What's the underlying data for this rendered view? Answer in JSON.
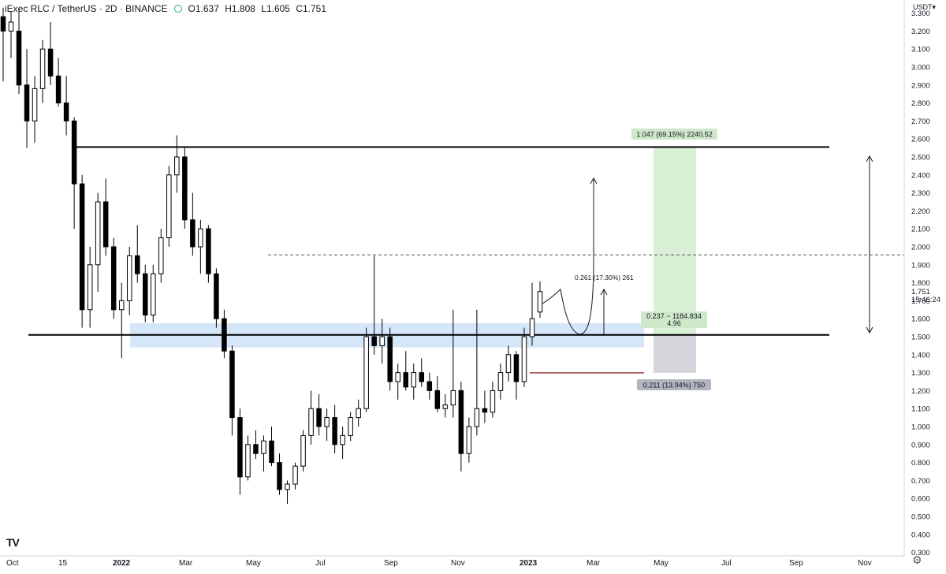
{
  "header": {
    "symbol": "iExec RLC / TetherUS · 2D · BINANCE",
    "open": "O1.637",
    "high": "H1.808",
    "low": "L1.605",
    "close": "C1.751"
  },
  "price_axis": {
    "unit": "USDT",
    "last_price": "1.751",
    "countdown": "15:46:24"
  },
  "logo_text": "TV",
  "settings_icon": "gear-icon",
  "colors": {
    "candle": "#000000",
    "support_zone": "#cfe3f7",
    "target_box": "#d9efd6",
    "stop_box": "#d5d5dc",
    "stop_line": "#a33b3b",
    "resistance_line": "#000000"
  },
  "annotations": {
    "target_label": "1.047 (69.15%) 2240.52",
    "rr_label_1": "0.237 ~ 1184.834",
    "rr_label_2": "4.96",
    "stop_label": "0.211 (13.94%) 750",
    "measure_label": "0.261 (17.30%) 261"
  },
  "chart_data": {
    "type": "candlestick",
    "title": "iExec RLC / TetherUS · 2D · BINANCE",
    "y_ticks": [
      "3.300",
      "3.200",
      "3.100",
      "3.000",
      "2.900",
      "2.800",
      "2.700",
      "2.600",
      "2.500",
      "2.400",
      "2.300",
      "2.200",
      "2.100",
      "2.000",
      "1.900",
      "1.800",
      "1.700",
      "1.600",
      "1.500",
      "1.400",
      "1.300",
      "1.200",
      "1.100",
      "1.000",
      "0.900",
      "0.800",
      "0.700",
      "0.600",
      "0.500",
      "0.400",
      "0.300"
    ],
    "x_ticks": [
      "Oct",
      "15",
      "2022",
      "Mar",
      "May",
      "Jul",
      "Sep",
      "Nov",
      "2023",
      "Mar",
      "May",
      "Jul",
      "Sep",
      "Nov"
    ],
    "ylim": [
      0.3,
      3.33
    ],
    "scale": "linear",
    "grid": false,
    "horizontal_levels": [
      2.555,
      1.51
    ],
    "dashed_level": 1.955,
    "support_zone": [
      1.44,
      1.575
    ],
    "long_position": {
      "entry": 1.51,
      "target": 2.557,
      "stop": 1.299
    },
    "series": [
      {
        "values": [
          {
            "o": 3.28,
            "h": 3.33,
            "l": 2.92,
            "c": 3.2
          },
          {
            "o": 3.2,
            "h": 3.31,
            "l": 3.05,
            "c": 3.25
          },
          {
            "o": 3.2,
            "h": 3.33,
            "l": 2.85,
            "c": 2.9
          },
          {
            "o": 2.9,
            "h": 3.1,
            "l": 2.55,
            "c": 2.7
          },
          {
            "o": 2.7,
            "h": 2.95,
            "l": 2.58,
            "c": 2.88
          },
          {
            "o": 2.88,
            "h": 3.15,
            "l": 2.8,
            "c": 3.1
          },
          {
            "o": 3.1,
            "h": 3.25,
            "l": 2.9,
            "c": 2.95
          },
          {
            "o": 2.95,
            "h": 3.05,
            "l": 2.78,
            "c": 2.8
          },
          {
            "o": 2.8,
            "h": 2.95,
            "l": 2.62,
            "c": 2.7
          },
          {
            "o": 2.7,
            "h": 2.72,
            "l": 2.1,
            "c": 2.35
          },
          {
            "o": 2.35,
            "h": 2.4,
            "l": 1.55,
            "c": 1.65
          },
          {
            "o": 1.65,
            "h": 2.0,
            "l": 1.55,
            "c": 1.9
          },
          {
            "o": 1.9,
            "h": 2.3,
            "l": 1.75,
            "c": 2.25
          },
          {
            "o": 2.25,
            "h": 2.38,
            "l": 1.95,
            "c": 2.0
          },
          {
            "o": 2.0,
            "h": 2.05,
            "l": 1.6,
            "c": 1.65
          },
          {
            "o": 1.65,
            "h": 1.8,
            "l": 1.38,
            "c": 1.7
          },
          {
            "o": 1.7,
            "h": 2.0,
            "l": 1.62,
            "c": 1.95
          },
          {
            "o": 1.95,
            "h": 2.12,
            "l": 1.8,
            "c": 1.85
          },
          {
            "o": 1.85,
            "h": 1.9,
            "l": 1.58,
            "c": 1.62
          },
          {
            "o": 1.62,
            "h": 1.9,
            "l": 1.58,
            "c": 1.85
          },
          {
            "o": 1.85,
            "h": 2.1,
            "l": 1.8,
            "c": 2.05
          },
          {
            "o": 2.05,
            "h": 2.45,
            "l": 2.0,
            "c": 2.4
          },
          {
            "o": 2.4,
            "h": 2.62,
            "l": 2.3,
            "c": 2.5
          },
          {
            "o": 2.5,
            "h": 2.55,
            "l": 2.1,
            "c": 2.15
          },
          {
            "o": 2.15,
            "h": 2.3,
            "l": 1.95,
            "c": 2.0
          },
          {
            "o": 2.0,
            "h": 2.15,
            "l": 1.85,
            "c": 2.1
          },
          {
            "o": 2.1,
            "h": 2.12,
            "l": 1.8,
            "c": 1.85
          },
          {
            "o": 1.85,
            "h": 1.88,
            "l": 1.55,
            "c": 1.6
          },
          {
            "o": 1.6,
            "h": 1.65,
            "l": 1.38,
            "c": 1.42
          },
          {
            "o": 1.42,
            "h": 1.45,
            "l": 0.95,
            "c": 1.05
          },
          {
            "o": 1.05,
            "h": 1.1,
            "l": 0.62,
            "c": 0.72
          },
          {
            "o": 0.72,
            "h": 0.95,
            "l": 0.7,
            "c": 0.9
          },
          {
            "o": 0.9,
            "h": 0.98,
            "l": 0.82,
            "c": 0.85
          },
          {
            "o": 0.85,
            "h": 0.95,
            "l": 0.75,
            "c": 0.92
          },
          {
            "o": 0.92,
            "h": 1.0,
            "l": 0.78,
            "c": 0.8
          },
          {
            "o": 0.8,
            "h": 0.85,
            "l": 0.62,
            "c": 0.65
          },
          {
            "o": 0.65,
            "h": 0.7,
            "l": 0.57,
            "c": 0.68
          },
          {
            "o": 0.68,
            "h": 0.8,
            "l": 0.65,
            "c": 0.78
          },
          {
            "o": 0.78,
            "h": 0.98,
            "l": 0.75,
            "c": 0.95
          },
          {
            "o": 0.95,
            "h": 1.2,
            "l": 0.9,
            "c": 1.1
          },
          {
            "o": 1.1,
            "h": 1.18,
            "l": 0.95,
            "c": 1.0
          },
          {
            "o": 1.0,
            "h": 1.1,
            "l": 0.92,
            "c": 1.05
          },
          {
            "o": 1.05,
            "h": 1.12,
            "l": 0.85,
            "c": 0.9
          },
          {
            "o": 0.9,
            "h": 1.0,
            "l": 0.82,
            "c": 0.95
          },
          {
            "o": 0.95,
            "h": 1.08,
            "l": 0.92,
            "c": 1.05
          },
          {
            "o": 1.05,
            "h": 1.15,
            "l": 1.0,
            "c": 1.1
          },
          {
            "o": 1.1,
            "h": 1.55,
            "l": 1.08,
            "c": 1.5
          },
          {
            "o": 1.5,
            "h": 1.95,
            "l": 1.4,
            "c": 1.45
          },
          {
            "o": 1.45,
            "h": 1.6,
            "l": 1.35,
            "c": 1.5
          },
          {
            "o": 1.5,
            "h": 1.55,
            "l": 1.2,
            "c": 1.25
          },
          {
            "o": 1.25,
            "h": 1.35,
            "l": 1.15,
            "c": 1.3
          },
          {
            "o": 1.3,
            "h": 1.42,
            "l": 1.2,
            "c": 1.22
          },
          {
            "o": 1.22,
            "h": 1.35,
            "l": 1.15,
            "c": 1.3
          },
          {
            "o": 1.3,
            "h": 1.38,
            "l": 1.22,
            "c": 1.25
          },
          {
            "o": 1.25,
            "h": 1.3,
            "l": 1.15,
            "c": 1.2
          },
          {
            "o": 1.2,
            "h": 1.28,
            "l": 1.08,
            "c": 1.1
          },
          {
            "o": 1.1,
            "h": 1.18,
            "l": 1.05,
            "c": 1.12
          },
          {
            "o": 1.12,
            "h": 1.65,
            "l": 1.05,
            "c": 1.2
          },
          {
            "o": 1.2,
            "h": 1.25,
            "l": 0.75,
            "c": 0.85
          },
          {
            "o": 0.85,
            "h": 1.05,
            "l": 0.8,
            "c": 1.0
          },
          {
            "o": 1.0,
            "h": 1.65,
            "l": 0.95,
            "c": 1.1
          },
          {
            "o": 1.1,
            "h": 1.2,
            "l": 1.02,
            "c": 1.08
          },
          {
            "o": 1.08,
            "h": 1.25,
            "l": 1.05,
            "c": 1.2
          },
          {
            "o": 1.2,
            "h": 1.35,
            "l": 1.15,
            "c": 1.3
          },
          {
            "o": 1.3,
            "h": 1.45,
            "l": 1.25,
            "c": 1.4
          },
          {
            "o": 1.4,
            "h": 1.42,
            "l": 1.15,
            "c": 1.25
          },
          {
            "o": 1.25,
            "h": 1.55,
            "l": 1.22,
            "c": 1.5
          },
          {
            "o": 1.5,
            "h": 1.8,
            "l": 1.45,
            "c": 1.6
          },
          {
            "o": 1.637,
            "h": 1.808,
            "l": 1.605,
            "c": 1.751
          }
        ]
      }
    ]
  }
}
